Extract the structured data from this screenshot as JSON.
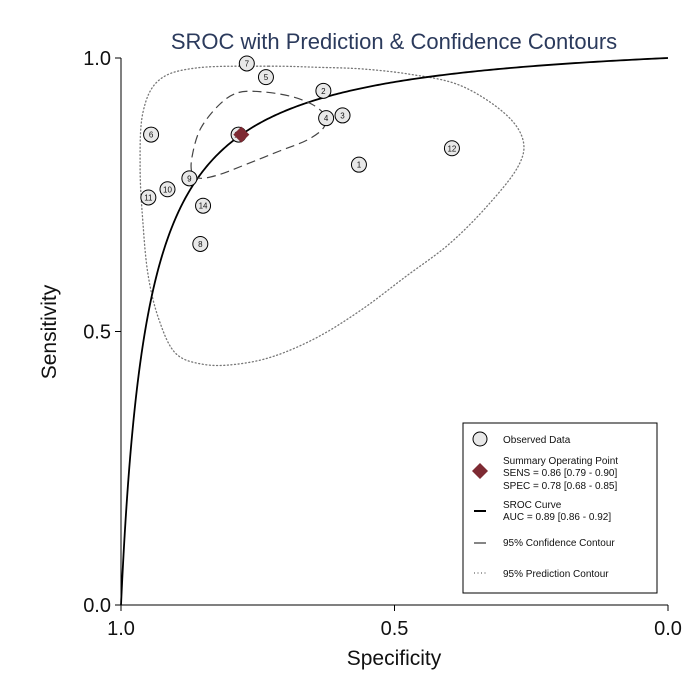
{
  "chart_data": {
    "type": "scatter",
    "title": "SROC with Prediction & Confidence Contours",
    "xlabel": "Specificity",
    "ylabel": "Sensitivity",
    "x_reversed": true,
    "xlim": [
      1.0,
      0.0
    ],
    "ylim": [
      0.0,
      1.0
    ],
    "x_ticks": [
      {
        "value": 1.0,
        "label": "1.0"
      },
      {
        "value": 0.5,
        "label": "0.5"
      },
      {
        "value": 0.0,
        "label": "0.0"
      }
    ],
    "y_ticks": [
      {
        "value": 0.0,
        "label": "0.0"
      },
      {
        "value": 0.5,
        "label": "0.5"
      },
      {
        "value": 1.0,
        "label": "1.0"
      }
    ],
    "grid": false,
    "legend_position": "bottom-right",
    "studies": [
      {
        "id": "1",
        "spec": 0.565,
        "sens": 0.805
      },
      {
        "id": "2",
        "spec": 0.63,
        "sens": 0.94
      },
      {
        "id": "3",
        "spec": 0.595,
        "sens": 0.895
      },
      {
        "id": "4",
        "spec": 0.625,
        "sens": 0.89
      },
      {
        "id": "5",
        "spec": 0.735,
        "sens": 0.965
      },
      {
        "id": "6",
        "spec": 0.945,
        "sens": 0.86
      },
      {
        "id": "7",
        "spec": 0.77,
        "sens": 0.99
      },
      {
        "id": "8",
        "spec": 0.855,
        "sens": 0.66
      },
      {
        "id": "9",
        "spec": 0.875,
        "sens": 0.78
      },
      {
        "id": "10",
        "spec": 0.915,
        "sens": 0.76
      },
      {
        "id": "11",
        "spec": 0.95,
        "sens": 0.745
      },
      {
        "id": "12",
        "spec": 0.395,
        "sens": 0.835
      },
      {
        "id": "13",
        "spec": 0.785,
        "sens": 0.86
      },
      {
        "id": "14",
        "spec": 0.85,
        "sens": 0.73
      }
    ],
    "summary_point": {
      "spec": 0.78,
      "sens": 0.86,
      "color": "#7e2a33"
    },
    "sroc_curve": {
      "auc": 0.89
    },
    "confidence_contour": [
      [
        0.785,
        0.937
      ],
      [
        0.74,
        0.938
      ],
      [
        0.69,
        0.93
      ],
      [
        0.65,
        0.915
      ],
      [
        0.628,
        0.895
      ],
      [
        0.63,
        0.872
      ],
      [
        0.66,
        0.85
      ],
      [
        0.71,
        0.83
      ],
      [
        0.77,
        0.806
      ],
      [
        0.82,
        0.787
      ],
      [
        0.855,
        0.78
      ],
      [
        0.87,
        0.79
      ],
      [
        0.87,
        0.82
      ],
      [
        0.855,
        0.87
      ],
      [
        0.82,
        0.915
      ]
    ],
    "prediction_contour": [
      [
        0.73,
        0.985
      ],
      [
        0.64,
        0.983
      ],
      [
        0.56,
        0.98
      ],
      [
        0.47,
        0.97
      ],
      [
        0.38,
        0.95
      ],
      [
        0.3,
        0.9
      ],
      [
        0.265,
        0.85
      ],
      [
        0.275,
        0.8
      ],
      [
        0.33,
        0.73
      ],
      [
        0.4,
        0.66
      ],
      [
        0.48,
        0.6
      ],
      [
        0.56,
        0.54
      ],
      [
        0.64,
        0.49
      ],
      [
        0.72,
        0.455
      ],
      [
        0.79,
        0.44
      ],
      [
        0.85,
        0.44
      ],
      [
        0.9,
        0.46
      ],
      [
        0.93,
        0.52
      ],
      [
        0.95,
        0.6
      ],
      [
        0.96,
        0.7
      ],
      [
        0.965,
        0.8
      ],
      [
        0.96,
        0.9
      ],
      [
        0.93,
        0.96
      ],
      [
        0.86,
        0.982
      ]
    ],
    "legend": {
      "observed": "Observed Data",
      "summary_title": "Summary Operating Point",
      "summary_sens": "SENS = 0.86 [0.79 - 0.90]",
      "summary_spec": "SPEC = 0.78 [0.68 - 0.85]",
      "sroc_title": "SROC Curve",
      "sroc_auc": "AUC = 0.89 [0.86 - 0.92]",
      "confidence": "95% Confidence Contour",
      "prediction": "95% Prediction Contour"
    }
  }
}
